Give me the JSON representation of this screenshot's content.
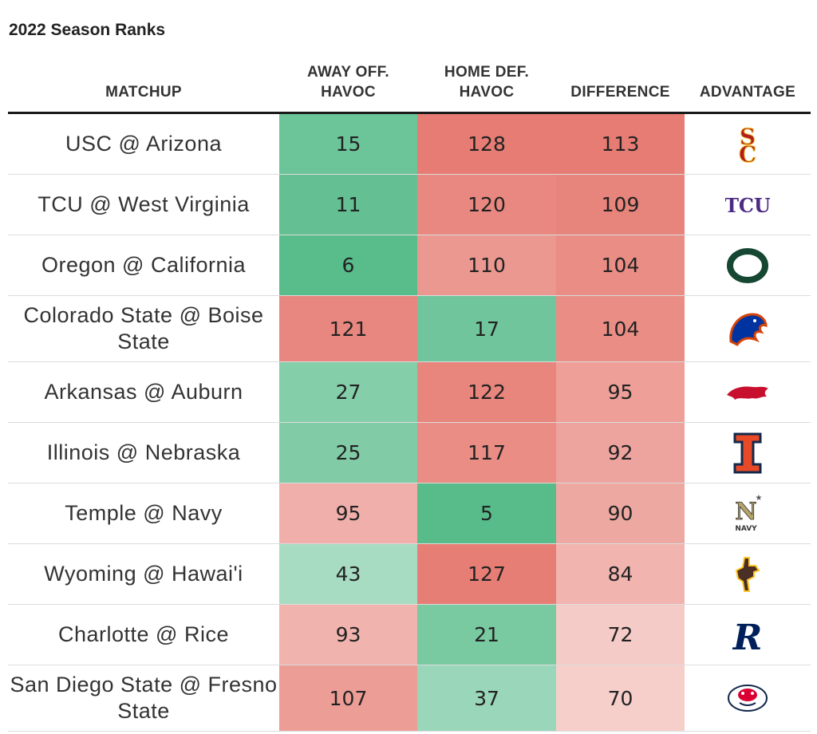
{
  "title": "2022 Season Ranks",
  "columns": {
    "matchup": "MATCHUP",
    "away_1": "AWAY OFF.",
    "away_2": "HAVOC",
    "home_1": "HOME DEF.",
    "home_2": "HAVOC",
    "difference": "DIFFERENCE",
    "advantage": "ADVANTAGE"
  },
  "chart_data": {
    "type": "table",
    "title": "2022 Season Ranks",
    "columns": [
      "MATCHUP",
      "AWAY OFF. HAVOC",
      "HOME DEF. HAVOC",
      "DIFFERENCE",
      "ADVANTAGE"
    ],
    "rows": [
      {
        "matchup": "USC @ Arizona",
        "away": 15,
        "home": 128,
        "diff": 113,
        "advantage_logo": "usc-logo"
      },
      {
        "matchup": "TCU @ West Virginia",
        "away": 11,
        "home": 120,
        "diff": 109,
        "advantage_logo": "tcu-logo"
      },
      {
        "matchup": "Oregon @ California",
        "away": 6,
        "home": 110,
        "diff": 104,
        "advantage_logo": "oregon-logo"
      },
      {
        "matchup": "Colorado State @ Boise State",
        "away": 121,
        "home": 17,
        "diff": 104,
        "advantage_logo": "boise-state-logo"
      },
      {
        "matchup": "Arkansas @ Auburn",
        "away": 27,
        "home": 122,
        "diff": 95,
        "advantage_logo": "arkansas-logo"
      },
      {
        "matchup": "Illinois @ Nebraska",
        "away": 25,
        "home": 117,
        "diff": 92,
        "advantage_logo": "illinois-logo"
      },
      {
        "matchup": "Temple @ Navy",
        "away": 95,
        "home": 5,
        "diff": 90,
        "advantage_logo": "navy-logo"
      },
      {
        "matchup": "Wyoming @ Hawai'i",
        "away": 43,
        "home": 127,
        "diff": 84,
        "advantage_logo": "wyoming-logo"
      },
      {
        "matchup": "Charlotte @ Rice",
        "away": 93,
        "home": 21,
        "diff": 72,
        "advantage_logo": "rice-logo"
      },
      {
        "matchup": "San Diego State @ Fresno State",
        "away": 107,
        "home": 37,
        "diff": 70,
        "advantage_logo": "fresno-state-logo"
      }
    ],
    "color_scale": {
      "low": "#57bb8a",
      "high": "#e67c73",
      "neutral": "#ffffff"
    }
  }
}
